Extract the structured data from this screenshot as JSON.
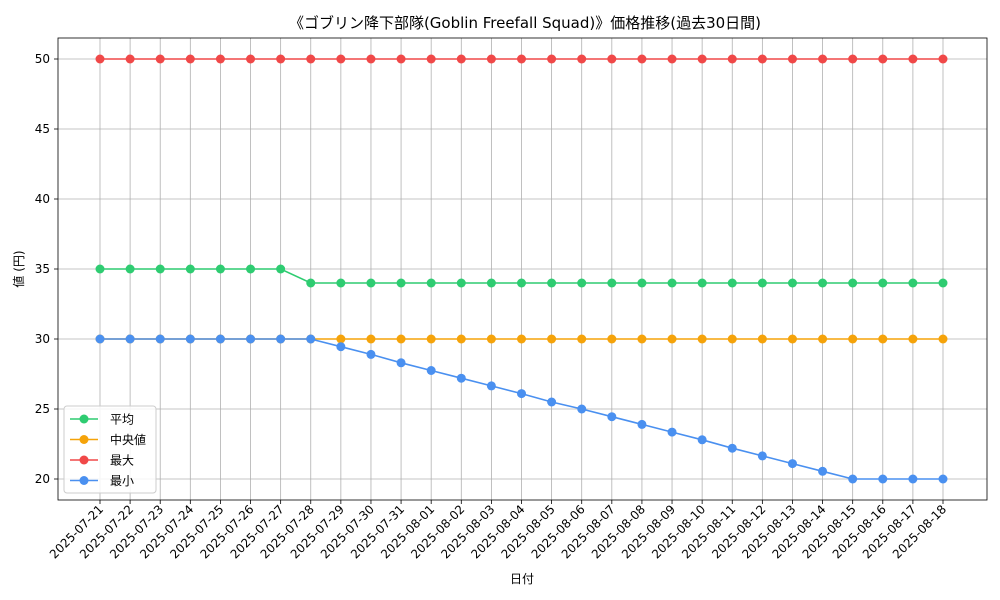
{
  "chart_data": {
    "type": "line",
    "title": "《ゴブリン降下部隊(Goblin Freefall Squad)》価格推移(過去30日間)",
    "xlabel": "日付",
    "ylabel": "値 (円)",
    "ylim": [
      18.5,
      51.5
    ],
    "yticks": [
      20,
      25,
      30,
      35,
      40,
      45,
      50
    ],
    "grid": true,
    "legend_position": "lower-left",
    "categories": [
      "2025-07-21",
      "2025-07-22",
      "2025-07-23",
      "2025-07-24",
      "2025-07-25",
      "2025-07-26",
      "2025-07-27",
      "2025-07-28",
      "2025-07-29",
      "2025-07-30",
      "2025-07-31",
      "2025-08-01",
      "2025-08-02",
      "2025-08-03",
      "2025-08-04",
      "2025-08-05",
      "2025-08-06",
      "2025-08-07",
      "2025-08-08",
      "2025-08-09",
      "2025-08-10",
      "2025-08-11",
      "2025-08-12",
      "2025-08-13",
      "2025-08-14",
      "2025-08-15",
      "2025-08-16",
      "2025-08-17",
      "2025-08-18"
    ],
    "series": [
      {
        "name": "平均",
        "color": "#2ecc71",
        "values": [
          35,
          35,
          35,
          35,
          35,
          35,
          35,
          34,
          34,
          34,
          34,
          34,
          34,
          34,
          34,
          34,
          34,
          34,
          34,
          34,
          34,
          34,
          34,
          34,
          34,
          34,
          34,
          34,
          34
        ]
      },
      {
        "name": "中央値",
        "color": "#f5a30a",
        "values": [
          30,
          30,
          30,
          30,
          30,
          30,
          30,
          30,
          30,
          30,
          30,
          30,
          30,
          30,
          30,
          30,
          30,
          30,
          30,
          30,
          30,
          30,
          30,
          30,
          30,
          30,
          30,
          30,
          30
        ]
      },
      {
        "name": "最大",
        "color": "#f04848",
        "values": [
          50,
          50,
          50,
          50,
          50,
          50,
          50,
          50,
          50,
          50,
          50,
          50,
          50,
          50,
          50,
          50,
          50,
          50,
          50,
          50,
          50,
          50,
          50,
          50,
          50,
          50,
          50,
          50,
          50
        ]
      },
      {
        "name": "最小",
        "color": "#4a90f0",
        "values": [
          30,
          30,
          30,
          30,
          30,
          30,
          30,
          30,
          29.45,
          28.9,
          28.3,
          27.75,
          27.2,
          26.65,
          26.1,
          25.5,
          25.0,
          24.45,
          23.9,
          23.35,
          22.8,
          22.2,
          21.65,
          21.1,
          20.55,
          20,
          20,
          20,
          20
        ]
      }
    ]
  }
}
